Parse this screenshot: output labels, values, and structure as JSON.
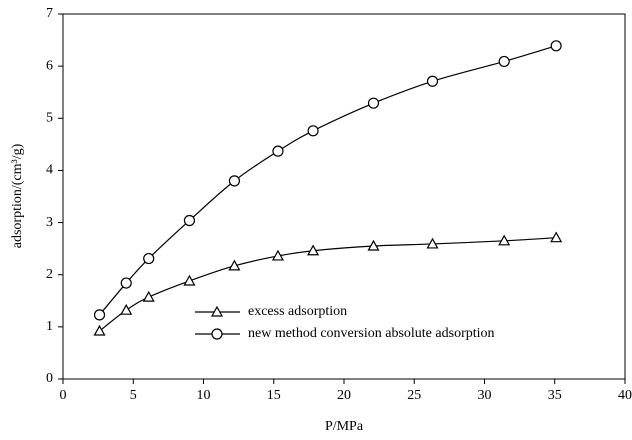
{
  "chart_data": {
    "type": "line",
    "x_label": "P/MPa",
    "y_label": "adsorption/(cm³/g)",
    "x": [
      2.6,
      4.5,
      6.1,
      9.0,
      12.2,
      15.3,
      17.8,
      22.1,
      26.3,
      31.4,
      35.1
    ],
    "series": [
      {
        "name": "excess adsorption",
        "color": "#000000",
        "marker": "triangle",
        "values": [
          0.92,
          1.32,
          1.57,
          1.88,
          2.17,
          2.36,
          2.46,
          2.55,
          2.59,
          2.65,
          2.71
        ]
      },
      {
        "name": "new method conversion absolute adsorption",
        "color": "#000000",
        "marker": "circle",
        "values": [
          1.23,
          1.84,
          2.31,
          3.04,
          3.8,
          4.37,
          4.76,
          5.29,
          5.71,
          6.09,
          6.39
        ]
      }
    ],
    "xlim": [
      0,
      40
    ],
    "xticks": [
      0,
      5,
      10,
      15,
      20,
      25,
      30,
      35,
      40
    ],
    "ylim": [
      0,
      7
    ],
    "yticks": [
      0,
      1,
      2,
      3,
      4,
      5,
      6,
      7
    ],
    "legend": "lower center"
  }
}
